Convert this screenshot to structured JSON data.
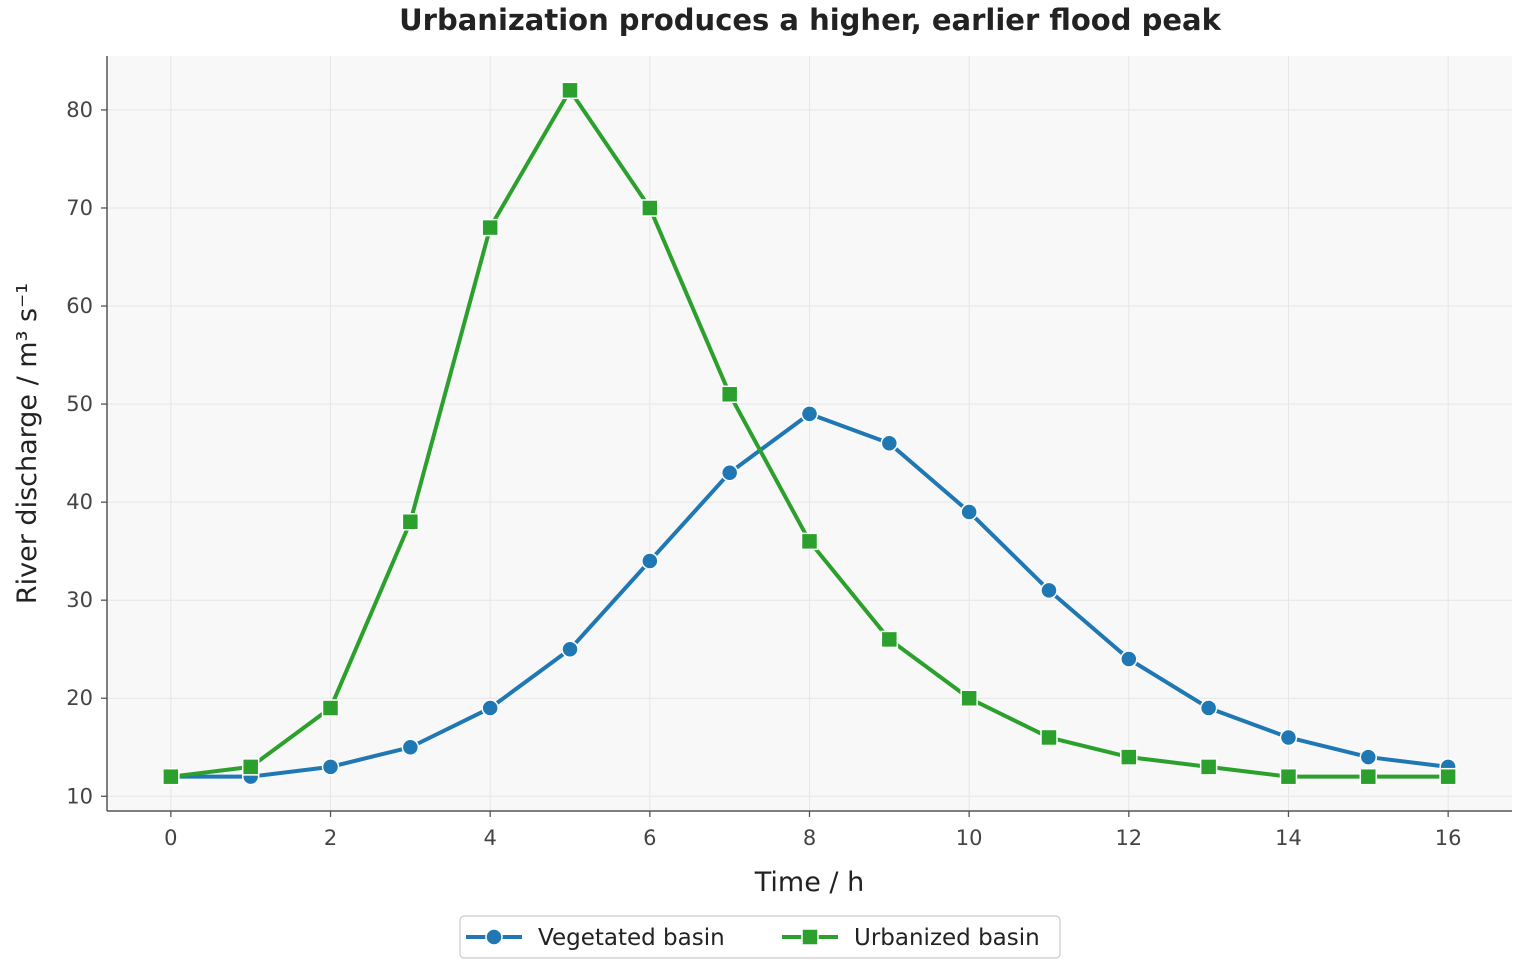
{
  "chart_data": {
    "type": "line",
    "title": "Urbanization produces a higher, earlier flood peak",
    "xlabel": "Time / h",
    "ylabel": "River discharge / m³ s⁻¹",
    "x": [
      0,
      1,
      2,
      3,
      4,
      5,
      6,
      7,
      8,
      9,
      10,
      11,
      12,
      13,
      14,
      15,
      16
    ],
    "xlim": [
      -0.8,
      16.8
    ],
    "ylim": [
      8.5,
      85.5
    ],
    "xticks": [
      0,
      2,
      4,
      6,
      8,
      10,
      12,
      14,
      16
    ],
    "yticks": [
      10,
      20,
      30,
      40,
      50,
      60,
      70,
      80
    ],
    "grid": true,
    "legend_position": "bottom-center",
    "series": [
      {
        "name": "Vegetated basin",
        "color": "#1f77b4",
        "marker": "circle",
        "values": [
          12,
          12,
          13,
          15,
          19,
          25,
          34,
          43,
          49,
          46,
          39,
          31,
          24,
          19,
          16,
          14,
          13
        ]
      },
      {
        "name": "Urbanized basin",
        "color": "#2ca02c",
        "marker": "square",
        "values": [
          12,
          13,
          19,
          38,
          68,
          82,
          70,
          51,
          36,
          26,
          20,
          16,
          14,
          13,
          12,
          12,
          12
        ]
      }
    ],
    "colors": {
      "plot_background": "#f8f8f8",
      "grid": "#e6e6e6"
    }
  }
}
